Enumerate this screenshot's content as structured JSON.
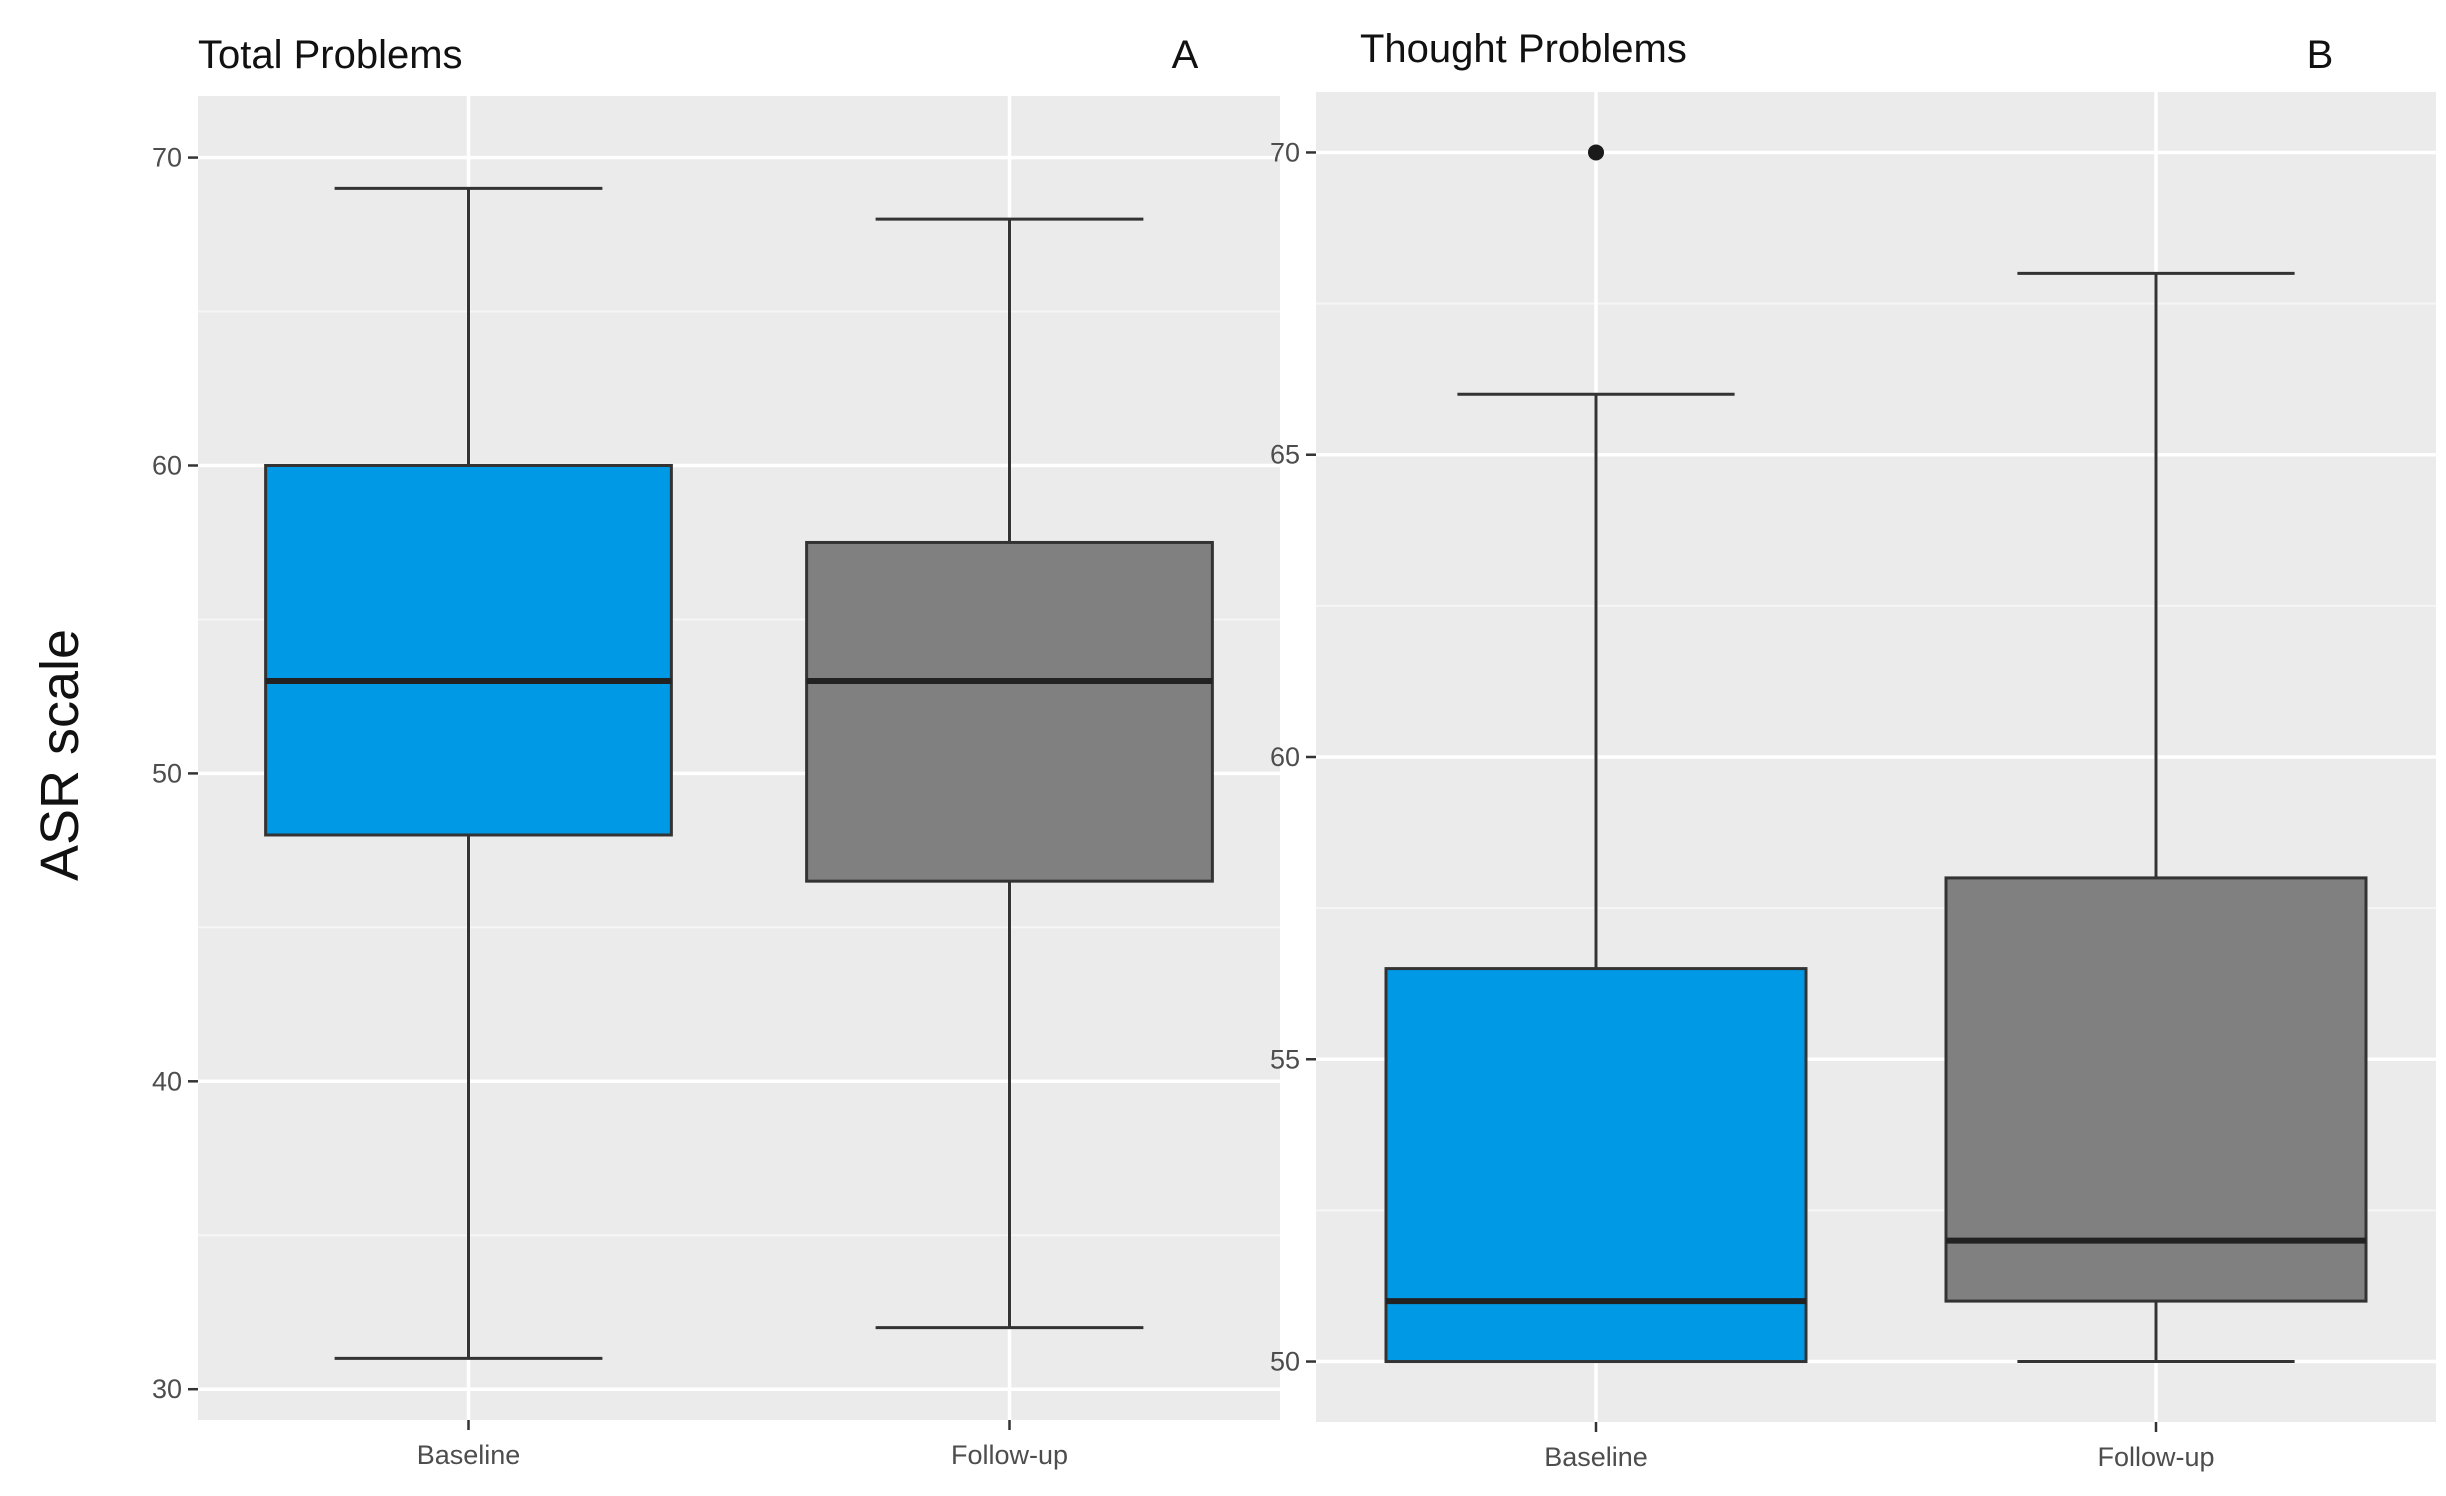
{
  "chart_data": [
    {
      "type": "boxplot",
      "title": "Total Problems",
      "panel_label": "A",
      "ylabel": "ASR scale",
      "ylim": [
        29,
        72
      ],
      "yticks": [
        30,
        40,
        50,
        60,
        70
      ],
      "grid": true,
      "categories": [
        "Baseline",
        "Follow-up"
      ],
      "boxes": [
        {
          "category": "Baseline",
          "min": 31,
          "q1": 48,
          "median": 53,
          "q3": 60,
          "max": 69,
          "outliers": [],
          "color": "#0099e6"
        },
        {
          "category": "Follow-up",
          "min": 32,
          "q1": 46.5,
          "median": 53,
          "q3": 57.5,
          "max": 68,
          "outliers": [],
          "color": "#808080"
        }
      ]
    },
    {
      "type": "boxplot",
      "title": "Thought Problems",
      "panel_label": "B",
      "ylim": [
        49,
        71
      ],
      "yticks": [
        50,
        55,
        60,
        65,
        70
      ],
      "grid": true,
      "categories": [
        "Baseline",
        "Follow-up"
      ],
      "boxes": [
        {
          "category": "Baseline",
          "min": 50,
          "q1": 50,
          "median": 51,
          "q3": 56.5,
          "max": 66,
          "outliers": [
            70
          ],
          "color": "#0099e6"
        },
        {
          "category": "Follow-up",
          "min": 50,
          "q1": 51,
          "median": 52,
          "q3": 58,
          "max": 68,
          "outliers": [],
          "color": "#808080"
        }
      ]
    }
  ]
}
